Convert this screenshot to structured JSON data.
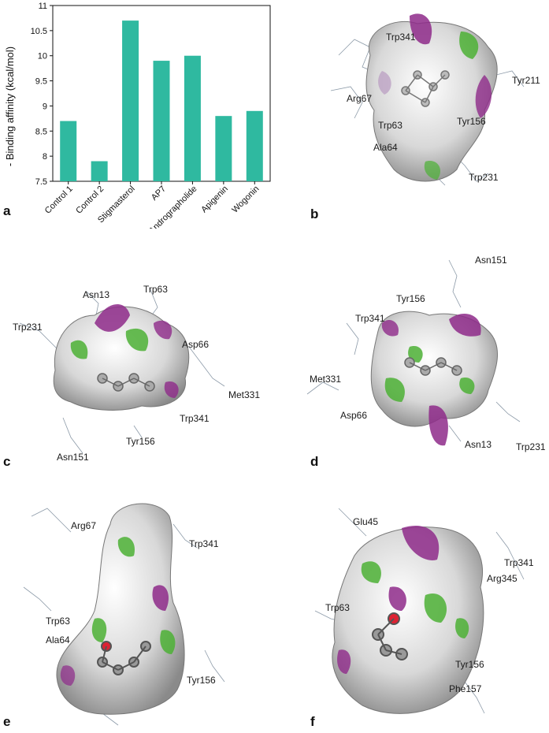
{
  "chart_data": {
    "type": "bar",
    "categories": [
      "Control 1",
      "Control 2",
      "Stigmasterol",
      "AP7",
      "Andrographolide",
      "Apigenin",
      "Wogonin"
    ],
    "values": [
      8.7,
      7.9,
      10.7,
      9.9,
      10.0,
      8.8,
      8.9
    ],
    "ylabel": "- Binding affinity (kcal/mol)",
    "xlabel": "",
    "ylim": [
      7.5,
      11
    ],
    "yticks": [
      "7.5",
      "8",
      "8.5",
      "9",
      "9.5",
      "10",
      "10.5",
      "11"
    ],
    "bar_color": "#2fb9a0"
  },
  "panels": {
    "a": "a",
    "b": "b",
    "c": "c",
    "d": "d",
    "e": "e",
    "f": "f"
  },
  "labels_b": [
    "Trp341",
    "Tyr211",
    "Arg67",
    "Trp63",
    "Tyr156",
    "Ala64",
    "Trp231"
  ],
  "labels_c": [
    "Asn13",
    "Trp63",
    "Trp231",
    "Asp66",
    "Met331",
    "Trp341",
    "Tyr156",
    "Asn151"
  ],
  "labels_d": [
    "Asn151",
    "Tyr156",
    "Trp341",
    "Met331",
    "Asp66",
    "Asn13",
    "Trp231"
  ],
  "labels_e": [
    "Arg67",
    "Trp341",
    "Trp63",
    "Ala64",
    "Tyr156"
  ],
  "labels_f": [
    "Glu45",
    "Trp341",
    "Arg345",
    "Trp63",
    "Tyr156",
    "Phe157"
  ],
  "colors": {
    "hydrophobic": "#8e2a8a",
    "hydrophilic": "#4cb035",
    "surface": "#9a9a9a"
  }
}
